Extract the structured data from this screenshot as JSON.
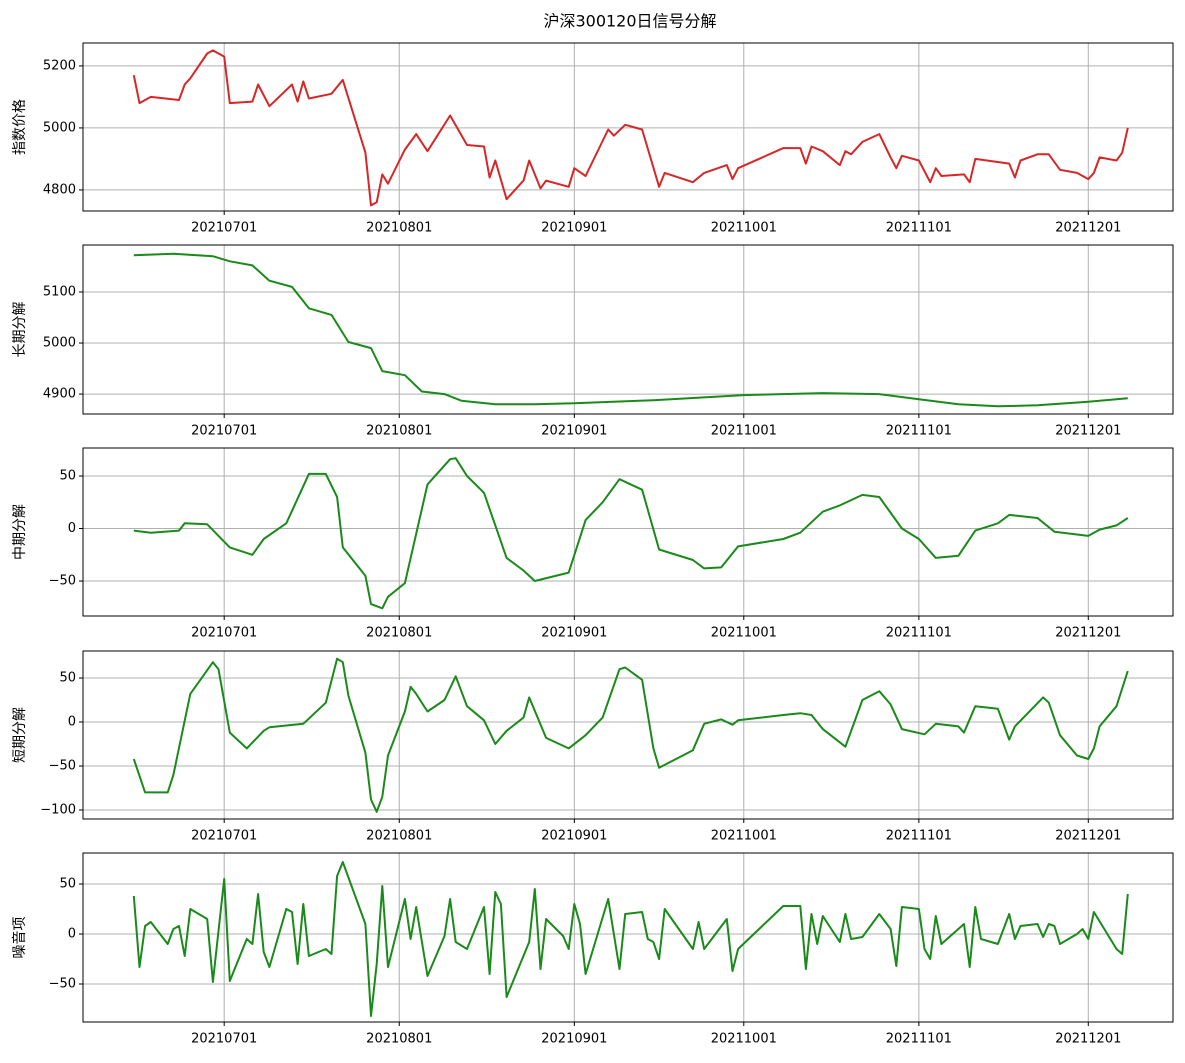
{
  "title": "沪深300120日信号分解",
  "chart_data": [
    {
      "type": "line",
      "ylabel": "指数价格",
      "color": "#d62728",
      "grid": true,
      "xlim": [
        "2021-06-06",
        "2021-12-16"
      ],
      "ylim": [
        4732,
        5274
      ],
      "yticks": [
        4800,
        5000,
        5200
      ],
      "xticks": [
        {
          "value": "2021-07-01",
          "label": "20210701"
        },
        {
          "value": "2021-08-01",
          "label": "20210801"
        },
        {
          "value": "2021-09-01",
          "label": "20210901"
        },
        {
          "value": "2021-10-01",
          "label": "20211001"
        },
        {
          "value": "2021-11-01",
          "label": "20211101"
        },
        {
          "value": "2021-12-01",
          "label": "20211201"
        }
      ],
      "x": [
        "2021-06-15",
        "2021-06-16",
        "2021-06-18",
        "2021-06-23",
        "2021-06-24",
        "2021-06-25",
        "2021-06-28",
        "2021-06-29",
        "2021-07-01",
        "2021-07-02",
        "2021-07-06",
        "2021-07-07",
        "2021-07-09",
        "2021-07-13",
        "2021-07-14",
        "2021-07-15",
        "2021-07-16",
        "2021-07-20",
        "2021-07-22",
        "2021-07-26",
        "2021-07-27",
        "2021-07-28",
        "2021-07-29",
        "2021-07-30",
        "2021-08-02",
        "2021-08-04",
        "2021-08-06",
        "2021-08-10",
        "2021-08-13",
        "2021-08-16",
        "2021-08-17",
        "2021-08-18",
        "2021-08-20",
        "2021-08-23",
        "2021-08-24",
        "2021-08-26",
        "2021-08-27",
        "2021-08-31",
        "2021-09-01",
        "2021-09-03",
        "2021-09-07",
        "2021-09-08",
        "2021-09-10",
        "2021-09-13",
        "2021-09-16",
        "2021-09-17",
        "2021-09-22",
        "2021-09-24",
        "2021-09-28",
        "2021-09-29",
        "2021-09-30",
        "2021-10-08",
        "2021-10-11",
        "2021-10-12",
        "2021-10-13",
        "2021-10-15",
        "2021-10-18",
        "2021-10-19",
        "2021-10-20",
        "2021-10-22",
        "2021-10-25",
        "2021-10-27",
        "2021-10-28",
        "2021-10-29",
        "2021-11-01",
        "2021-11-03",
        "2021-11-04",
        "2021-11-05",
        "2021-11-09",
        "2021-11-10",
        "2021-11-11",
        "2021-11-17",
        "2021-11-18",
        "2021-11-19",
        "2021-11-22",
        "2021-11-24",
        "2021-11-26",
        "2021-11-29",
        "2021-12-01",
        "2021-12-02",
        "2021-12-03",
        "2021-12-06",
        "2021-12-07",
        "2021-12-08"
      ],
      "values": [
        5170,
        5080,
        5100,
        5090,
        5140,
        5160,
        5240,
        5250,
        5230,
        5080,
        5085,
        5140,
        5070,
        5140,
        5085,
        5150,
        5095,
        5110,
        5155,
        4920,
        4750,
        4760,
        4850,
        4820,
        4930,
        4980,
        4925,
        5040,
        4945,
        4940,
        4840,
        4895,
        4770,
        4830,
        4895,
        4805,
        4830,
        4810,
        4870,
        4845,
        4995,
        4975,
        5010,
        4995,
        4810,
        4855,
        4825,
        4855,
        4880,
        4835,
        4870,
        4935,
        4935,
        4885,
        4940,
        4925,
        4880,
        4925,
        4915,
        4955,
        4980,
        4905,
        4870,
        4910,
        4895,
        4825,
        4870,
        4845,
        4850,
        4825,
        4900,
        4885,
        4840,
        4895,
        4915,
        4915,
        4865,
        4855,
        4835,
        4855,
        4905,
        4895,
        4920,
        5000
      ]
    },
    {
      "type": "line",
      "ylabel": "长期分解",
      "color": "#1a8a1a",
      "grid": true,
      "xlim": [
        "2021-06-06",
        "2021-12-16"
      ],
      "ylim": [
        4861,
        5192
      ],
      "yticks": [
        4900,
        5000,
        5100
      ],
      "xticks": [
        {
          "value": "2021-07-01",
          "label": "20210701"
        },
        {
          "value": "2021-08-01",
          "label": "20210801"
        },
        {
          "value": "2021-09-01",
          "label": "20210901"
        },
        {
          "value": "2021-10-01",
          "label": "20211001"
        },
        {
          "value": "2021-11-01",
          "label": "20211101"
        },
        {
          "value": "2021-12-01",
          "label": "20211201"
        }
      ],
      "x": [
        "2021-06-15",
        "2021-06-22",
        "2021-06-29",
        "2021-07-02",
        "2021-07-06",
        "2021-07-09",
        "2021-07-13",
        "2021-07-16",
        "2021-07-20",
        "2021-07-23",
        "2021-07-27",
        "2021-07-29",
        "2021-08-02",
        "2021-08-05",
        "2021-08-09",
        "2021-08-12",
        "2021-08-18",
        "2021-08-25",
        "2021-09-01",
        "2021-09-15",
        "2021-10-01",
        "2021-10-15",
        "2021-10-25",
        "2021-11-01",
        "2021-11-08",
        "2021-11-15",
        "2021-11-22",
        "2021-12-01",
        "2021-12-08"
      ],
      "values": [
        5172,
        5175,
        5170,
        5160,
        5152,
        5122,
        5110,
        5068,
        5055,
        5002,
        4990,
        4945,
        4937,
        4905,
        4900,
        4887,
        4880,
        4880,
        4882,
        4888,
        4898,
        4902,
        4900,
        4890,
        4880,
        4876,
        4878,
        4885,
        4892
      ]
    },
    {
      "type": "line",
      "ylabel": "中期分解",
      "color": "#1a8a1a",
      "grid": true,
      "xlim": [
        "2021-06-06",
        "2021-12-16"
      ],
      "ylim": [
        -83.3,
        76.7
      ],
      "yticks": [
        {
          "value": -50,
          "label": "−50"
        },
        0,
        50
      ],
      "xticks": [
        {
          "value": "2021-07-01",
          "label": "20210701"
        },
        {
          "value": "2021-08-01",
          "label": "20210801"
        },
        {
          "value": "2021-09-01",
          "label": "20210901"
        },
        {
          "value": "2021-10-01",
          "label": "20211001"
        },
        {
          "value": "2021-11-01",
          "label": "20211101"
        },
        {
          "value": "2021-12-01",
          "label": "20211201"
        }
      ],
      "x": [
        "2021-06-15",
        "2021-06-18",
        "2021-06-23",
        "2021-06-24",
        "2021-06-28",
        "2021-07-02",
        "2021-07-06",
        "2021-07-08",
        "2021-07-12",
        "2021-07-16",
        "2021-07-19",
        "2021-07-21",
        "2021-07-22",
        "2021-07-26",
        "2021-07-27",
        "2021-07-29",
        "2021-07-30",
        "2021-08-02",
        "2021-08-06",
        "2021-08-10",
        "2021-08-11",
        "2021-08-13",
        "2021-08-16",
        "2021-08-20",
        "2021-08-23",
        "2021-08-25",
        "2021-08-31",
        "2021-09-03",
        "2021-09-06",
        "2021-09-09",
        "2021-09-13",
        "2021-09-16",
        "2021-09-22",
        "2021-09-24",
        "2021-09-27",
        "2021-09-30",
        "2021-10-08",
        "2021-10-11",
        "2021-10-15",
        "2021-10-18",
        "2021-10-22",
        "2021-10-25",
        "2021-10-29",
        "2021-11-01",
        "2021-11-04",
        "2021-11-08",
        "2021-11-11",
        "2021-11-15",
        "2021-11-17",
        "2021-11-22",
        "2021-11-25",
        "2021-12-01",
        "2021-12-03",
        "2021-12-06",
        "2021-12-08"
      ],
      "values": [
        -2,
        -4,
        -2,
        5,
        4,
        -18,
        -25,
        -10,
        5,
        52,
        52,
        30,
        -18,
        -45,
        -72,
        -76,
        -65,
        -52,
        42,
        66,
        67,
        50,
        34,
        -28,
        -40,
        -50,
        -42,
        8,
        25,
        47,
        37,
        -20,
        -30,
        -38,
        -37,
        -17,
        -10,
        -4,
        16,
        22,
        32,
        30,
        0,
        -10,
        -28,
        -26,
        -2,
        5,
        13,
        10,
        -3,
        -7,
        -1,
        3,
        10
      ]
    },
    {
      "type": "line",
      "ylabel": "短期分解",
      "color": "#1a8a1a",
      "grid": true,
      "xlim": [
        "2021-06-06",
        "2021-12-16"
      ],
      "ylim": [
        -110.2,
        80.7
      ],
      "yticks": [
        {
          "value": -100,
          "label": "−100"
        },
        {
          "value": -50,
          "label": "−50"
        },
        0,
        50
      ],
      "xticks": [
        {
          "value": "2021-07-01",
          "label": "20210701"
        },
        {
          "value": "2021-08-01",
          "label": "20210801"
        },
        {
          "value": "2021-09-01",
          "label": "20210901"
        },
        {
          "value": "2021-10-01",
          "label": "20211001"
        },
        {
          "value": "2021-11-01",
          "label": "20211101"
        },
        {
          "value": "2021-12-01",
          "label": "20211201"
        }
      ],
      "x": [
        "2021-06-15",
        "2021-06-17",
        "2021-06-21",
        "2021-06-22",
        "2021-06-25",
        "2021-06-29",
        "2021-06-30",
        "2021-07-02",
        "2021-07-05",
        "2021-07-08",
        "2021-07-09",
        "2021-07-15",
        "2021-07-19",
        "2021-07-21",
        "2021-07-22",
        "2021-07-23",
        "2021-07-26",
        "2021-07-27",
        "2021-07-28",
        "2021-07-29",
        "2021-07-30",
        "2021-08-02",
        "2021-08-03",
        "2021-08-04",
        "2021-08-06",
        "2021-08-09",
        "2021-08-11",
        "2021-08-13",
        "2021-08-16",
        "2021-08-18",
        "2021-08-20",
        "2021-08-23",
        "2021-08-24",
        "2021-08-27",
        "2021-08-31",
        "2021-09-03",
        "2021-09-06",
        "2021-09-09",
        "2021-09-10",
        "2021-09-13",
        "2021-09-15",
        "2021-09-16",
        "2021-09-22",
        "2021-09-24",
        "2021-09-27",
        "2021-09-29",
        "2021-09-30",
        "2021-10-08",
        "2021-10-11",
        "2021-10-13",
        "2021-10-15",
        "2021-10-19",
        "2021-10-22",
        "2021-10-25",
        "2021-10-27",
        "2021-10-29",
        "2021-11-02",
        "2021-11-04",
        "2021-11-08",
        "2021-11-09",
        "2021-11-11",
        "2021-11-15",
        "2021-11-17",
        "2021-11-18",
        "2021-11-23",
        "2021-11-24",
        "2021-11-26",
        "2021-11-29",
        "2021-12-01",
        "2021-12-02",
        "2021-12-03",
        "2021-12-06",
        "2021-12-08"
      ],
      "values": [
        -42,
        -80,
        -80,
        -60,
        32,
        68,
        60,
        -12,
        -30,
        -10,
        -6,
        -2,
        22,
        72,
        68,
        30,
        -35,
        -88,
        -102,
        -85,
        -38,
        12,
        40,
        32,
        12,
        25,
        52,
        18,
        2,
        -25,
        -10,
        5,
        28,
        -18,
        -30,
        -15,
        5,
        60,
        62,
        48,
        -30,
        -52,
        -32,
        -2,
        3,
        -3,
        2,
        8,
        10,
        8,
        -8,
        -28,
        25,
        35,
        20,
        -8,
        -14,
        -2,
        -5,
        -12,
        18,
        15,
        -20,
        -5,
        28,
        22,
        -15,
        -38,
        -42,
        -30,
        -5,
        18,
        58
      ]
    },
    {
      "type": "line",
      "ylabel": "噪音项",
      "color": "#1a8a1a",
      "grid": true,
      "xlim": [
        "2021-06-06",
        "2021-12-16"
      ],
      "ylim": [
        -88,
        81
      ],
      "yticks": [
        {
          "value": -50,
          "label": "−50"
        },
        0,
        50
      ],
      "xticks": [
        {
          "value": "2021-07-01",
          "label": "20210701"
        },
        {
          "value": "2021-08-01",
          "label": "20210801"
        },
        {
          "value": "2021-09-01",
          "label": "20210901"
        },
        {
          "value": "2021-10-01",
          "label": "20211001"
        },
        {
          "value": "2021-11-01",
          "label": "20211101"
        },
        {
          "value": "2021-12-01",
          "label": "20211201"
        }
      ],
      "x": [
        "2021-06-15",
        "2021-06-16",
        "2021-06-17",
        "2021-06-18",
        "2021-06-21",
        "2021-06-22",
        "2021-06-23",
        "2021-06-24",
        "2021-06-25",
        "2021-06-28",
        "2021-06-29",
        "2021-07-01",
        "2021-07-02",
        "2021-07-05",
        "2021-07-06",
        "2021-07-07",
        "2021-07-08",
        "2021-07-09",
        "2021-07-12",
        "2021-07-13",
        "2021-07-14",
        "2021-07-15",
        "2021-07-16",
        "2021-07-19",
        "2021-07-20",
        "2021-07-21",
        "2021-07-22",
        "2021-07-26",
        "2021-07-27",
        "2021-07-28",
        "2021-07-29",
        "2021-07-30",
        "2021-08-02",
        "2021-08-03",
        "2021-08-04",
        "2021-08-06",
        "2021-08-09",
        "2021-08-10",
        "2021-08-11",
        "2021-08-13",
        "2021-08-16",
        "2021-08-17",
        "2021-08-18",
        "2021-08-19",
        "2021-08-20",
        "2021-08-24",
        "2021-08-25",
        "2021-08-26",
        "2021-08-27",
        "2021-08-30",
        "2021-08-31",
        "2021-09-01",
        "2021-09-02",
        "2021-09-03",
        "2021-09-07",
        "2021-09-09",
        "2021-09-10",
        "2021-09-13",
        "2021-09-14",
        "2021-09-15",
        "2021-09-16",
        "2021-09-17",
        "2021-09-22",
        "2021-09-23",
        "2021-09-24",
        "2021-09-28",
        "2021-09-29",
        "2021-09-30",
        "2021-10-08",
        "2021-10-11",
        "2021-10-12",
        "2021-10-13",
        "2021-10-14",
        "2021-10-15",
        "2021-10-18",
        "2021-10-19",
        "2021-10-20",
        "2021-10-22",
        "2021-10-25",
        "2021-10-27",
        "2021-10-28",
        "2021-10-29",
        "2021-11-01",
        "2021-11-02",
        "2021-11-03",
        "2021-11-04",
        "2021-11-05",
        "2021-11-09",
        "2021-11-10",
        "2021-11-11",
        "2021-11-12",
        "2021-11-15",
        "2021-11-17",
        "2021-11-18",
        "2021-11-19",
        "2021-11-22",
        "2021-11-23",
        "2021-11-24",
        "2021-11-25",
        "2021-11-26",
        "2021-11-29",
        "2021-11-30",
        "2021-12-01",
        "2021-12-02",
        "2021-12-06",
        "2021-12-07",
        "2021-12-08"
      ],
      "values": [
        38,
        -33,
        8,
        12,
        -10,
        5,
        8,
        -22,
        25,
        15,
        -48,
        55,
        -47,
        -5,
        -10,
        40,
        -18,
        -33,
        25,
        22,
        -30,
        30,
        -22,
        -15,
        -20,
        58,
        72,
        10,
        -82,
        -30,
        48,
        -33,
        35,
        -5,
        27,
        -42,
        -2,
        35,
        -8,
        -15,
        27,
        -40,
        42,
        30,
        -63,
        -8,
        45,
        -35,
        15,
        -2,
        -15,
        30,
        10,
        -40,
        35,
        -35,
        20,
        22,
        -5,
        -8,
        -25,
        25,
        -15,
        12,
        -15,
        15,
        -37,
        -15,
        28,
        28,
        -35,
        20,
        -10,
        18,
        -8,
        20,
        -5,
        -3,
        20,
        5,
        -32,
        27,
        25,
        -15,
        -25,
        18,
        -10,
        10,
        -33,
        27,
        -5,
        -10,
        20,
        -5,
        8,
        10,
        -3,
        10,
        8,
        -10,
        0,
        5,
        -5,
        22,
        -15,
        -20,
        40
      ]
    }
  ]
}
